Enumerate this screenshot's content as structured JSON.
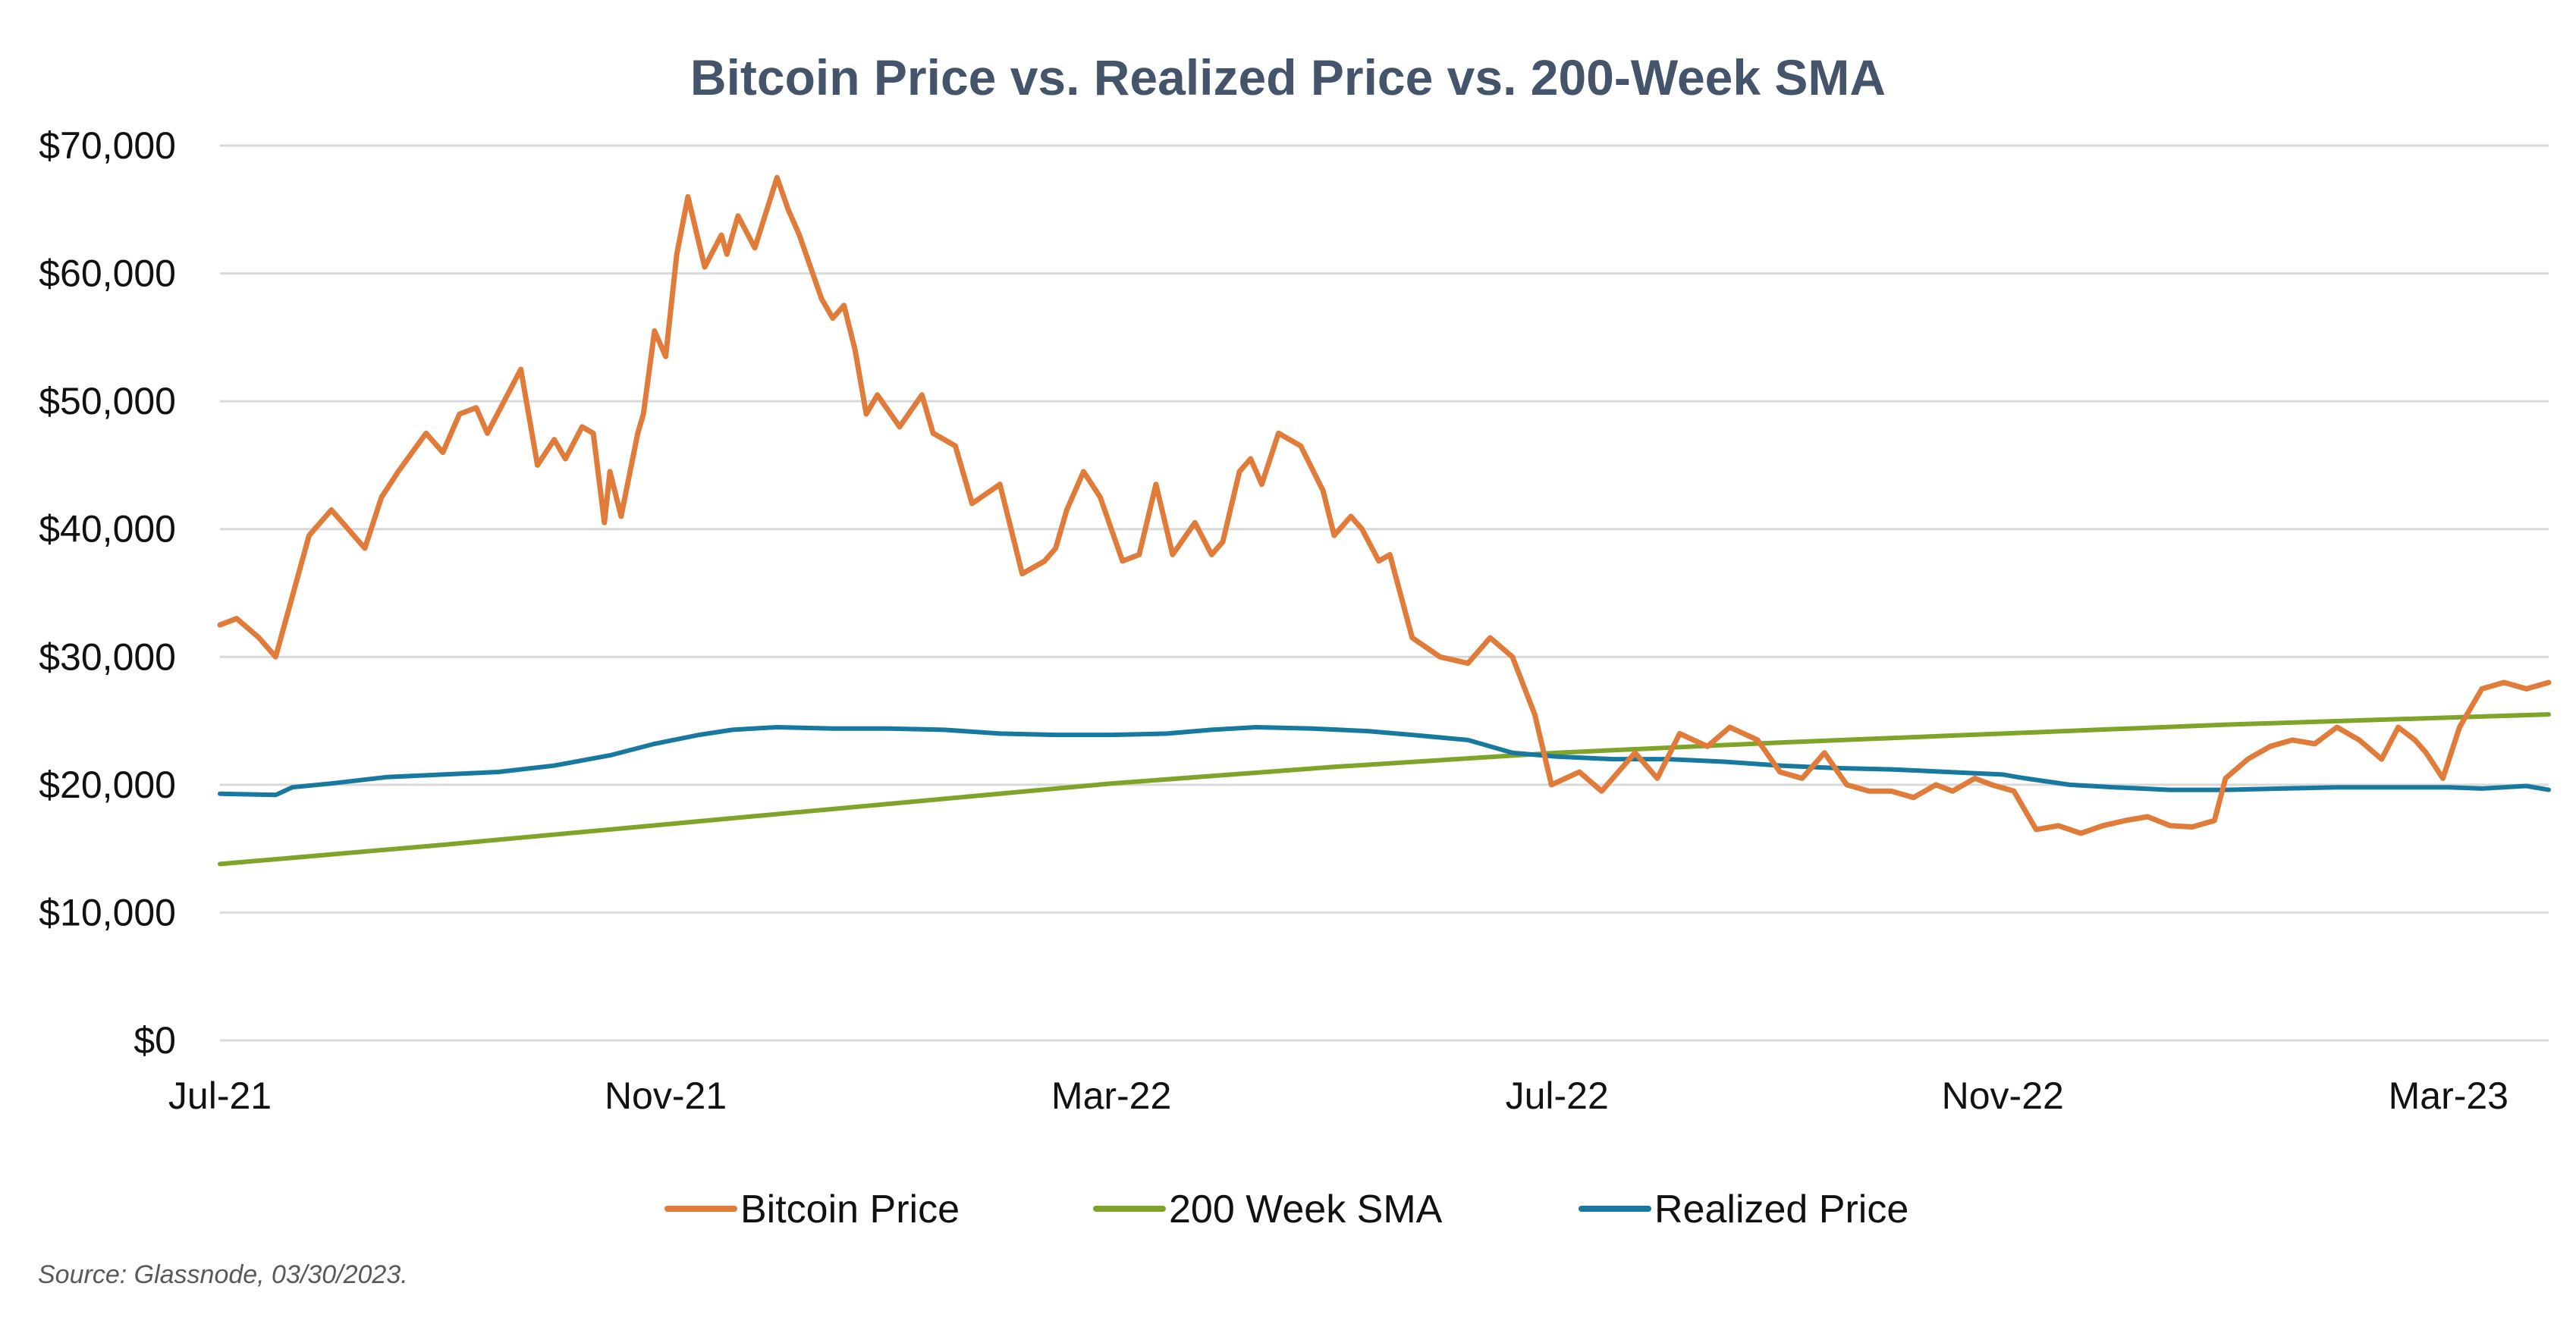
{
  "chart_data": {
    "type": "line",
    "title": "Bitcoin Price vs. Realized Price vs. 200-Week SMA",
    "xlabel": "",
    "ylabel": "",
    "ylim": [
      0,
      70000
    ],
    "y_ticks": [
      0,
      10000,
      20000,
      30000,
      40000,
      50000,
      60000,
      70000
    ],
    "y_tick_labels": [
      "$0",
      "$10,000",
      "$20,000",
      "$30,000",
      "$40,000",
      "$50,000",
      "$60,000",
      "$70,000"
    ],
    "xlim": [
      0,
      20.9
    ],
    "x_ticks": [
      0,
      4,
      8,
      12,
      16,
      20
    ],
    "x_tick_labels": [
      "Jul-21",
      "Nov-21",
      "Mar-22",
      "Jul-22",
      "Nov-22",
      "Mar-23"
    ],
    "x_unit": "months since Jul-2021",
    "grid": true,
    "legend_position": "bottom",
    "series": [
      {
        "name": "Bitcoin Price",
        "color": "#e07b39",
        "x": [
          0.0,
          0.15,
          0.35,
          0.5,
          0.8,
          1.0,
          1.3,
          1.45,
          1.6,
          1.85,
          2.0,
          2.15,
          2.3,
          2.4,
          2.55,
          2.7,
          2.85,
          3.0,
          3.1,
          3.25,
          3.35,
          3.45,
          3.5,
          3.6,
          3.75,
          3.8,
          3.9,
          4.0,
          4.1,
          4.2,
          4.35,
          4.5,
          4.55,
          4.65,
          4.8,
          5.0,
          5.1,
          5.2,
          5.4,
          5.5,
          5.6,
          5.7,
          5.8,
          5.9,
          6.1,
          6.3,
          6.4,
          6.6,
          6.75,
          7.0,
          7.2,
          7.4,
          7.5,
          7.6,
          7.75,
          7.9,
          8.1,
          8.25,
          8.4,
          8.55,
          8.75,
          8.9,
          9.0,
          9.15,
          9.25,
          9.35,
          9.5,
          9.7,
          9.9,
          10.0,
          10.15,
          10.25,
          10.4,
          10.5,
          10.7,
          10.95,
          11.2,
          11.4,
          11.6,
          11.8,
          11.95,
          12.2,
          12.4,
          12.5,
          12.7,
          12.9,
          13.1,
          13.35,
          13.55,
          13.8,
          14.0,
          14.2,
          14.4,
          14.6,
          14.8,
          15.0,
          15.2,
          15.4,
          15.55,
          15.75,
          15.9,
          16.1,
          16.3,
          16.5,
          16.7,
          16.9,
          17.1,
          17.3,
          17.5,
          17.7,
          17.9,
          18.0,
          18.2,
          18.4,
          18.6,
          18.8,
          19.0,
          19.2,
          19.4,
          19.55,
          19.7,
          19.8,
          19.95,
          20.1,
          20.3,
          20.5,
          20.7,
          20.9
        ],
        "values": [
          32500,
          33000,
          31500,
          30000,
          39500,
          41500,
          38500,
          42500,
          44500,
          47500,
          46000,
          49000,
          49500,
          47500,
          50000,
          52500,
          45000,
          47000,
          45500,
          48000,
          47500,
          40500,
          44500,
          41000,
          47500,
          49000,
          55500,
          53500,
          61500,
          66000,
          60500,
          63000,
          61500,
          64500,
          62000,
          67500,
          65000,
          63000,
          58000,
          56500,
          57500,
          54000,
          49000,
          50500,
          48000,
          50500,
          47500,
          46500,
          42000,
          43500,
          36500,
          37500,
          38500,
          41500,
          44500,
          42500,
          37500,
          38000,
          43500,
          38000,
          40500,
          38000,
          39000,
          44500,
          45500,
          43500,
          47500,
          46500,
          43000,
          39500,
          41000,
          40000,
          37500,
          38000,
          31500,
          30000,
          29500,
          31500,
          30000,
          25500,
          20000,
          21000,
          19500,
          20500,
          22500,
          20500,
          24000,
          23000,
          24500,
          23500,
          21000,
          20500,
          22500,
          20000,
          19500,
          19500,
          19000,
          20000,
          19500,
          20500,
          20000,
          19500,
          16500,
          16800,
          16200,
          16800,
          17200,
          17500,
          16800,
          16700,
          17200,
          20500,
          22000,
          23000,
          23500,
          23200,
          24500,
          23500,
          22000,
          24500,
          23500,
          22500,
          20500,
          24500,
          27500,
          28000,
          27500,
          28000
        ]
      },
      {
        "name": "200 Week SMA",
        "color": "#7ea42a",
        "x": [
          0,
          2,
          4,
          6,
          8,
          10,
          12,
          14,
          16,
          18,
          20.9
        ],
        "values": [
          13800,
          15300,
          16900,
          18500,
          20100,
          21400,
          22500,
          23300,
          24000,
          24700,
          25500
        ]
      },
      {
        "name": "Realized Price",
        "color": "#1879a0",
        "x": [
          0,
          0.5,
          0.65,
          1.0,
          1.5,
          2.0,
          2.5,
          3.0,
          3.5,
          3.9,
          4.3,
          4.6,
          5.0,
          5.5,
          6.0,
          6.5,
          7.0,
          7.5,
          8.0,
          8.5,
          8.9,
          9.3,
          9.8,
          10.3,
          10.7,
          11.2,
          11.6,
          12.0,
          12.5,
          13.0,
          13.5,
          14.0,
          14.5,
          15.0,
          15.5,
          16.0,
          16.2,
          16.6,
          17.0,
          17.5,
          18.0,
          18.5,
          19.0,
          19.5,
          20.0,
          20.3,
          20.7,
          20.9
        ],
        "values": [
          19300,
          19200,
          19800,
          20100,
          20600,
          20800,
          21000,
          21500,
          22300,
          23200,
          23900,
          24300,
          24500,
          24400,
          24400,
          24300,
          24000,
          23900,
          23900,
          24000,
          24300,
          24500,
          24400,
          24200,
          23900,
          23500,
          22500,
          22200,
          22000,
          22000,
          21800,
          21500,
          21300,
          21200,
          21000,
          20800,
          20500,
          20000,
          19800,
          19600,
          19600,
          19700,
          19800,
          19800,
          19800,
          19700,
          19900,
          19600
        ]
      }
    ]
  },
  "source": "Source: Glassnode, 03/30/2023."
}
